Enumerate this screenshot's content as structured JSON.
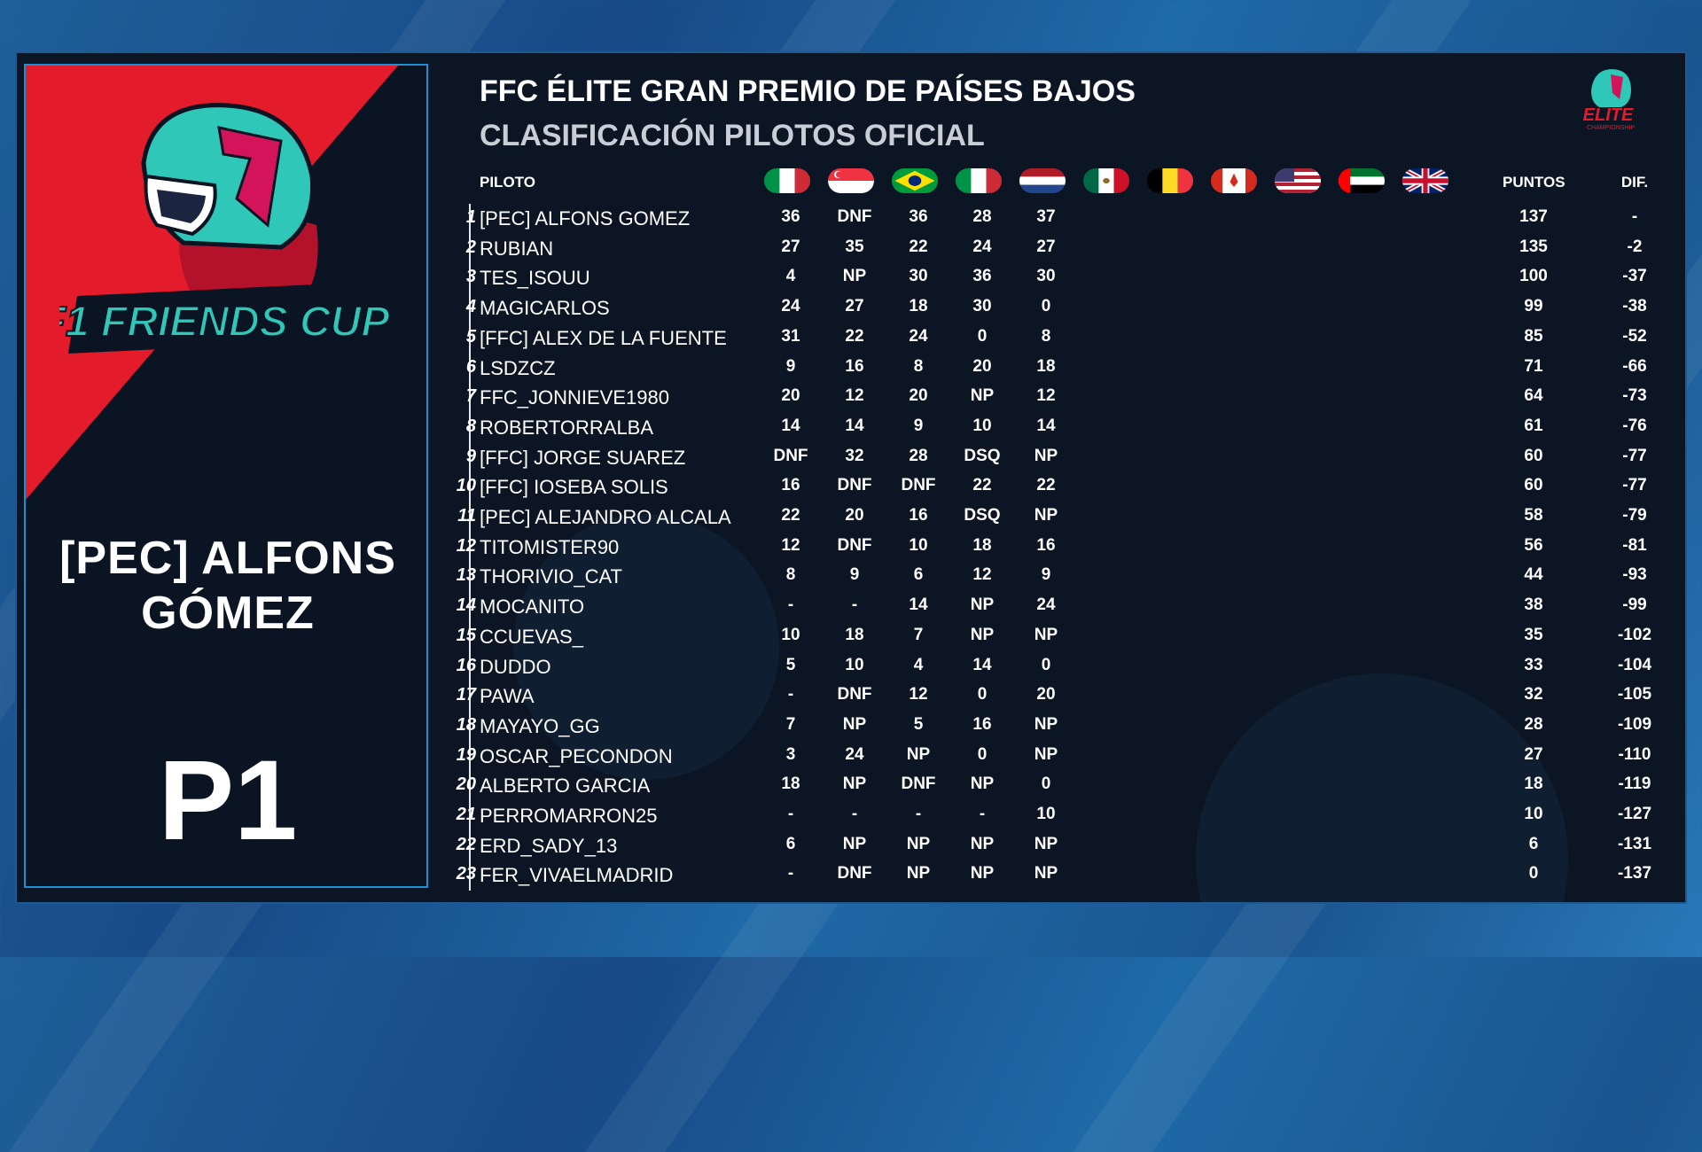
{
  "header": {
    "title": "FFC ÉLITE GRAN PREMIO DE PAÍSES BAJOS",
    "subtitle": "CLASIFICACIÓN PILOTOS OFICIAL"
  },
  "logo": {
    "text": "F1 FRIENDS CUP",
    "icon": "helmet-logo"
  },
  "brand_logo": {
    "text": "ELITE",
    "small_text": "CHAMPIONSHIP"
  },
  "featured": {
    "name": "[PEC] ALFONS GÓMEZ",
    "position": "P1"
  },
  "colors": {
    "accent_red": "#e31b2b",
    "panel_bg": "#0c1524",
    "border": "#1e8fd0",
    "helmet_teal": "#2fc7b8"
  },
  "table": {
    "headers": {
      "driver": "PILOTO",
      "points": "PUNTOS",
      "diff": "DIF."
    },
    "flags": [
      "italy-flag",
      "singapore-flag",
      "brazil-flag",
      "italy-flag",
      "netherlands-flag",
      "mexico-flag",
      "belgium-flag",
      "canada-flag",
      "usa-flag",
      "uae-flag",
      "uk-flag"
    ],
    "rows": [
      {
        "pos": "1",
        "name": "[PEC] ALFONS GOMEZ",
        "r": [
          "36",
          "DNF",
          "36",
          "28",
          "37"
        ],
        "pts": "137",
        "dif": "-"
      },
      {
        "pos": "2",
        "name": "RUBIAN",
        "r": [
          "27",
          "35",
          "22",
          "24",
          "27"
        ],
        "pts": "135",
        "dif": "-2"
      },
      {
        "pos": "3",
        "name": "TES_ISOUU",
        "r": [
          "4",
          "NP",
          "30",
          "36",
          "30"
        ],
        "pts": "100",
        "dif": "-37"
      },
      {
        "pos": "4",
        "name": "MAGICARLOS",
        "r": [
          "24",
          "27",
          "18",
          "30",
          "0"
        ],
        "pts": "99",
        "dif": "-38"
      },
      {
        "pos": "5",
        "name": "[FFC] ALEX DE LA FUENTE",
        "r": [
          "31",
          "22",
          "24",
          "0",
          "8"
        ],
        "pts": "85",
        "dif": "-52"
      },
      {
        "pos": "6",
        "name": "LSDZCZ",
        "r": [
          "9",
          "16",
          "8",
          "20",
          "18"
        ],
        "pts": "71",
        "dif": "-66"
      },
      {
        "pos": "7",
        "name": "FFC_JONNIEVE1980",
        "r": [
          "20",
          "12",
          "20",
          "NP",
          "12"
        ],
        "pts": "64",
        "dif": "-73"
      },
      {
        "pos": "8",
        "name": "ROBERTORRALBA",
        "r": [
          "14",
          "14",
          "9",
          "10",
          "14"
        ],
        "pts": "61",
        "dif": "-76"
      },
      {
        "pos": "9",
        "name": "[FFC] JORGE SUAREZ",
        "r": [
          "DNF",
          "32",
          "28",
          "DSQ",
          "NP"
        ],
        "pts": "60",
        "dif": "-77"
      },
      {
        "pos": "10",
        "name": "[FFC] IOSEBA SOLIS",
        "r": [
          "16",
          "DNF",
          "DNF",
          "22",
          "22"
        ],
        "pts": "60",
        "dif": "-77"
      },
      {
        "pos": "11",
        "name": "[PEC] ALEJANDRO ALCALA",
        "r": [
          "22",
          "20",
          "16",
          "DSQ",
          "NP"
        ],
        "pts": "58",
        "dif": "-79"
      },
      {
        "pos": "12",
        "name": "TITOMISTER90",
        "r": [
          "12",
          "DNF",
          "10",
          "18",
          "16"
        ],
        "pts": "56",
        "dif": "-81"
      },
      {
        "pos": "13",
        "name": "THORIVIO_CAT",
        "r": [
          "8",
          "9",
          "6",
          "12",
          "9"
        ],
        "pts": "44",
        "dif": "-93"
      },
      {
        "pos": "14",
        "name": "MOCANITO",
        "r": [
          "-",
          "-",
          "14",
          "NP",
          "24"
        ],
        "pts": "38",
        "dif": "-99"
      },
      {
        "pos": "15",
        "name": "CCUEVAS_",
        "r": [
          "10",
          "18",
          "7",
          "NP",
          "NP"
        ],
        "pts": "35",
        "dif": "-102"
      },
      {
        "pos": "16",
        "name": "DUDDO",
        "r": [
          "5",
          "10",
          "4",
          "14",
          "0"
        ],
        "pts": "33",
        "dif": "-104"
      },
      {
        "pos": "17",
        "name": "PAWA",
        "r": [
          "-",
          "DNF",
          "12",
          "0",
          "20"
        ],
        "pts": "32",
        "dif": "-105"
      },
      {
        "pos": "18",
        "name": "MAYAYO_GG",
        "r": [
          "7",
          "NP",
          "5",
          "16",
          "NP"
        ],
        "pts": "28",
        "dif": "-109"
      },
      {
        "pos": "19",
        "name": "OSCAR_PECONDON",
        "r": [
          "3",
          "24",
          "NP",
          "0",
          "NP"
        ],
        "pts": "27",
        "dif": "-110"
      },
      {
        "pos": "20",
        "name": "ALBERTO GARCIA",
        "r": [
          "18",
          "NP",
          "DNF",
          "NP",
          "0"
        ],
        "pts": "18",
        "dif": "-119"
      },
      {
        "pos": "21",
        "name": "PERROMARRON25",
        "r": [
          "-",
          "-",
          "-",
          "-",
          "10"
        ],
        "pts": "10",
        "dif": "-127"
      },
      {
        "pos": "22",
        "name": "ERD_SADY_13",
        "r": [
          "6",
          "NP",
          "NP",
          "NP",
          "NP"
        ],
        "pts": "6",
        "dif": "-131"
      },
      {
        "pos": "23",
        "name": "FER_VIVAELMADRID",
        "r": [
          "-",
          "DNF",
          "NP",
          "NP",
          "NP"
        ],
        "pts": "0",
        "dif": "-137"
      }
    ]
  }
}
